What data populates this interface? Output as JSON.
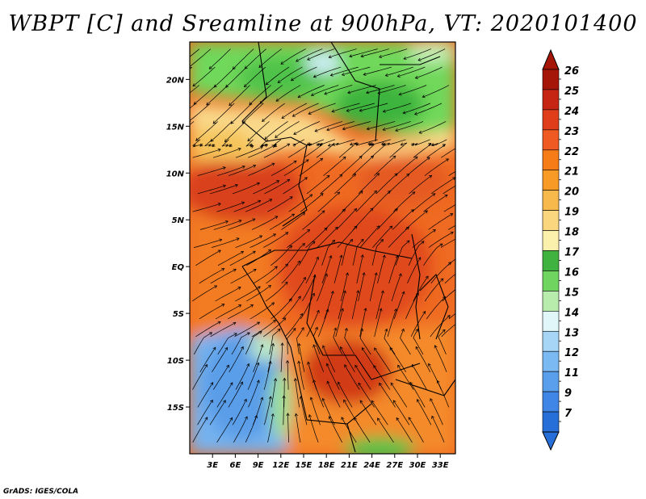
{
  "title": "WBPT [C] and Sreamline at 900hPa, VT: 2020101400",
  "credit": "GrADS: IGES/COLA",
  "map": {
    "lat_labels": [
      "20N",
      "15N",
      "10N",
      "5N",
      "EQ",
      "5S",
      "10S",
      "15S"
    ],
    "lon_labels": [
      "3E",
      "6E",
      "9E",
      "12E",
      "15E",
      "18E",
      "21E",
      "24E",
      "27E",
      "30E",
      "33E"
    ],
    "lat_values": [
      20,
      15,
      10,
      5,
      0,
      -5,
      -10,
      -15
    ],
    "lon_values": [
      3,
      6,
      9,
      12,
      15,
      18,
      21,
      24,
      27,
      30,
      33
    ],
    "lon_range": [
      0,
      35
    ],
    "lat_range": [
      -20,
      24
    ],
    "regions": [
      {
        "name": "sahara-green",
        "color": "#6ed65a"
      },
      {
        "name": "sahel-yellow",
        "color": "#f9e08a"
      },
      {
        "name": "central-red",
        "color": "#e8521e"
      },
      {
        "name": "southern-orange",
        "color": "#f38a2a"
      },
      {
        "name": "atlantic-blue",
        "color": "#6aa6ec"
      }
    ]
  },
  "colorbar": {
    "levels": [
      "26",
      "25",
      "24",
      "23",
      "22",
      "21",
      "20",
      "19",
      "18",
      "17",
      "16",
      "15",
      "14",
      "13",
      "12",
      "11",
      "9",
      "7"
    ],
    "colors": [
      "#a51508",
      "#c72513",
      "#e03d1b",
      "#ee5a21",
      "#f57c17",
      "#f79b26",
      "#f7b84c",
      "#fad67e",
      "#fbf1ad",
      "#3fb23f",
      "#70d461",
      "#b7ecac",
      "#e0f6f8",
      "#a6d5f6",
      "#7ab9f2",
      "#5a9fec",
      "#3f86e6",
      "#276fd8"
    ]
  }
}
